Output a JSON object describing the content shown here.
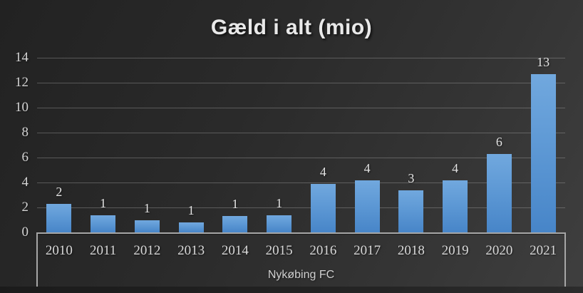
{
  "title": "Gæld i alt (mio)",
  "chart_data": {
    "type": "bar",
    "title": "Gæld i alt (mio)",
    "categories": [
      "2010",
      "2011",
      "2012",
      "2013",
      "2014",
      "2015",
      "2016",
      "2017",
      "2018",
      "2019",
      "2020",
      "2021"
    ],
    "values": [
      2.3,
      1.4,
      1.0,
      0.8,
      1.3,
      1.4,
      3.9,
      4.2,
      3.4,
      4.2,
      6.3,
      12.7
    ],
    "data_labels": [
      "2",
      "1",
      "1",
      "1",
      "1",
      "1",
      "4",
      "4",
      "3",
      "4",
      "6",
      "13"
    ],
    "xlabel": "Nykøbing FC",
    "ylabel": "",
    "y_ticks": [
      0,
      2,
      4,
      6,
      8,
      10,
      12,
      14
    ],
    "ylim": [
      0,
      14
    ],
    "grid": true,
    "legend": "none",
    "colors": {
      "bar_gradient_top": "#71a8de",
      "bar_gradient_bottom": "#4785c8",
      "background_dark": "#222222",
      "background_light": "#3f3f3f",
      "gridline": "rgba(172,172,172,0.38)",
      "axis_line": "#a6a6a6",
      "tick_text": "#d4d4d4",
      "label_text": "#e4e4e4",
      "title_text": "#e9e9e9"
    }
  }
}
